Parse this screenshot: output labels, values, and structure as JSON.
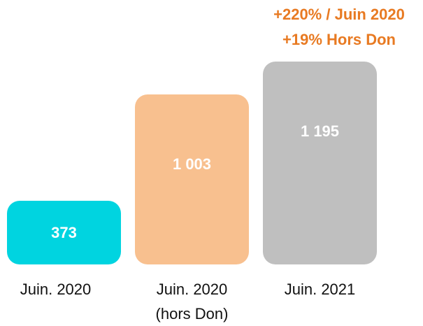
{
  "chart_data": {
    "type": "bar",
    "categories": [
      "Juin. 2020",
      "Juin. 2020 (hors Don)",
      "Juin. 2021"
    ],
    "values": [
      373,
      1003,
      1195
    ],
    "value_labels": [
      "373",
      "1 003",
      "1 195"
    ],
    "colors": [
      "#00d4e0",
      "#f8c08f",
      "#bfbfbf"
    ],
    "annotations": [
      "+220% / Juin 2020",
      "+19% Hors Don"
    ],
    "annotation_color": "#e87a22"
  }
}
